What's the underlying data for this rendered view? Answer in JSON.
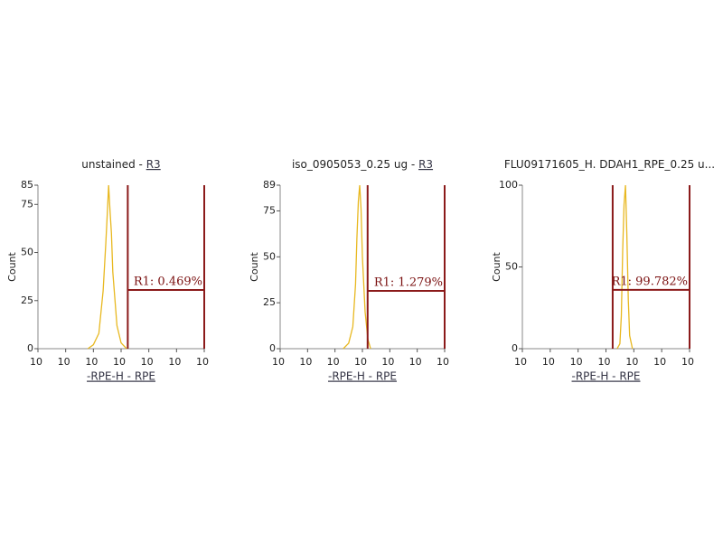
{
  "chart_data": [
    {
      "type": "line",
      "title": "unstained -",
      "title_link": "R3",
      "x_label": "-RPE-H - RPE",
      "y_label": "Count",
      "color": "#e8b820",
      "xscale": "log",
      "xlim": [
        1,
        1000000
      ],
      "ylim": [
        0,
        85
      ],
      "xticks": [
        {
          "value": 1,
          "label": "10"
        },
        {
          "value": 10,
          "label": "10"
        },
        {
          "value": 100,
          "label": "10"
        },
        {
          "value": 1000,
          "label": "10"
        },
        {
          "value": 10000,
          "label": "10"
        },
        {
          "value": 100000,
          "label": "10"
        },
        {
          "value": 1000000,
          "label": "10"
        }
      ],
      "yticks": [
        0,
        25,
        50,
        75,
        85
      ],
      "x": [
        63,
        100,
        158,
        224,
        282,
        316,
        355,
        398,
        447,
        501,
        708,
        1000,
        1585
      ],
      "values": [
        0,
        2,
        8,
        30,
        55,
        70,
        85,
        72,
        60,
        40,
        12,
        3,
        0
      ],
      "gate": {
        "label": "R1: 0.469%",
        "color": "#8b1a1a",
        "range": [
          1740,
          1000000
        ],
        "level": 30.5
      }
    },
    {
      "type": "line",
      "title": "iso_0905053_0.25 ug -",
      "title_link": "R3",
      "x_label": "-RPE-H - RPE",
      "y_label": "Count",
      "color": "#e8b820",
      "xscale": "log",
      "xlim": [
        1,
        1000000
      ],
      "ylim": [
        0,
        89
      ],
      "xticks": [
        {
          "value": 1,
          "label": "10"
        },
        {
          "value": 10,
          "label": "10"
        },
        {
          "value": 100,
          "label": "10"
        },
        {
          "value": 1000,
          "label": "10"
        },
        {
          "value": 10000,
          "label": "10"
        },
        {
          "value": 100000,
          "label": "10"
        },
        {
          "value": 1000000,
          "label": "10"
        }
      ],
      "yticks": [
        0,
        25,
        50,
        75,
        89
      ],
      "x": [
        200,
        316,
        447,
        562,
        631,
        708,
        794,
        891,
        1000,
        1259,
        1585,
        1995
      ],
      "values": [
        0,
        3,
        12,
        35,
        60,
        80,
        89,
        76,
        50,
        20,
        5,
        0
      ],
      "gate": {
        "label": "R1: 1.279%",
        "color": "#8b1a1a",
        "range": [
          1550,
          1000000
        ],
        "level": 31.5
      }
    },
    {
      "type": "line",
      "title": "FLU09171605_H. DDAH1_RPE_0.25 u...",
      "x_label": "-RPE-H - RPE",
      "y_label": "Count",
      "color": "#e8b820",
      "xscale": "log",
      "xlim": [
        1,
        1000000
      ],
      "ylim": [
        0,
        100
      ],
      "xticks": [
        {
          "value": 1,
          "label": "10"
        },
        {
          "value": 10,
          "label": "10"
        },
        {
          "value": 100,
          "label": "10"
        },
        {
          "value": 1000,
          "label": "10"
        },
        {
          "value": 10000,
          "label": "10"
        },
        {
          "value": 100000,
          "label": "10"
        },
        {
          "value": 1000000,
          "label": "10"
        }
      ],
      "yticks": [
        0,
        50,
        100
      ],
      "x": [
        2512,
        3162,
        3548,
        3981,
        4467,
        5012,
        5623,
        6310,
        7079,
        8913
      ],
      "values": [
        0,
        3,
        20,
        60,
        88,
        100,
        70,
        30,
        8,
        0
      ],
      "gate": {
        "label": "R1: 99.782%",
        "color": "#8b1a1a",
        "range": [
          1740,
          1000000
        ],
        "level": 36
      }
    }
  ]
}
